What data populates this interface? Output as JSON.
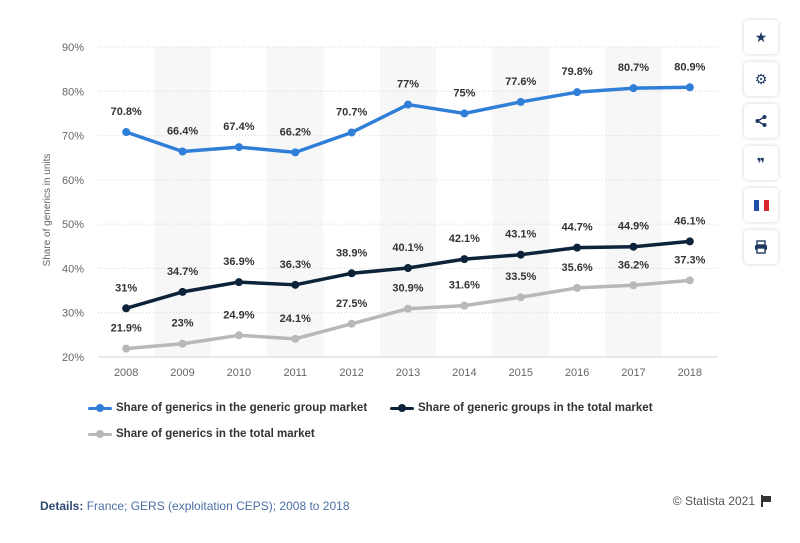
{
  "chart_data": {
    "type": "line",
    "ylabel": "Share of generics in units",
    "x": [
      "2008",
      "2009",
      "2010",
      "2011",
      "2012",
      "2013",
      "2014",
      "2015",
      "2016",
      "2017",
      "2018"
    ],
    "ylim": [
      20,
      90
    ],
    "yticks": [
      "20%",
      "30%",
      "40%",
      "50%",
      "60%",
      "70%",
      "80%",
      "90%"
    ],
    "grid": true,
    "legend_position": "bottom-left",
    "series": [
      {
        "name": "Share of generics in the generic group market",
        "color": "#2f7ed8",
        "values": [
          70.8,
          66.4,
          67.4,
          66.2,
          70.7,
          77,
          75,
          77.6,
          79.8,
          80.7,
          80.9
        ],
        "labels": [
          "70.8%",
          "66.4%",
          "67.4%",
          "66.2%",
          "70.7%",
          "77%",
          "75%",
          "77.6%",
          "79.8%",
          "80.7%",
          "80.9%"
        ]
      },
      {
        "name": "Share of generic groups in the total market",
        "color": "#0d233a",
        "values": [
          31,
          34.7,
          36.9,
          36.3,
          38.9,
          40.1,
          42.1,
          43.1,
          44.7,
          44.9,
          46.1
        ],
        "labels": [
          "31%",
          "34.7%",
          "36.9%",
          "36.3%",
          "38.9%",
          "40.1%",
          "42.1%",
          "43.1%",
          "44.7%",
          "44.9%",
          "46.1%"
        ]
      },
      {
        "name": "Share of generics in the total market",
        "color": "#b8b8b8",
        "values": [
          21.9,
          23,
          24.9,
          24.1,
          27.5,
          30.9,
          31.6,
          33.5,
          35.6,
          36.2,
          37.3
        ],
        "labels": [
          "21.9%",
          "23%",
          "24.9%",
          "24.1%",
          "27.5%",
          "30.9%",
          "31.6%",
          "33.5%",
          "35.6%",
          "36.2%",
          "37.3%"
        ]
      }
    ]
  },
  "footer": {
    "details_label": "Details:",
    "details_text": " France; GERS (exploitation CEPS); 2008 to 2018",
    "copyright": "© Statista 2021"
  },
  "toolbar": [
    {
      "icon": "star-icon",
      "glyph": "★"
    },
    {
      "icon": "gear-icon",
      "glyph": "⚙"
    },
    {
      "icon": "share-icon",
      "glyph": "⋖"
    },
    {
      "icon": "quote-icon",
      "glyph": "❞"
    },
    {
      "icon": "france-flag-icon",
      "glyph": ""
    },
    {
      "icon": "print-icon",
      "glyph": "⎙"
    }
  ]
}
